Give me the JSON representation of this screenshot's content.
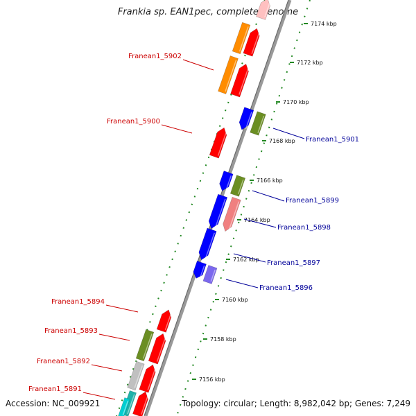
{
  "header": {
    "title": "Frankia sp. EAN1pec, complete genome"
  },
  "footer": {
    "accession": "Accession: NC_009921",
    "topology": "Topology: circular; Length: 8,982,042 bp; Genes: 7,249"
  },
  "colors": {
    "forward_label": "#cc0000",
    "reverse_label": "#000099",
    "dotted_track": "#228822",
    "backbone": "#999999",
    "gene_red": "#ff0000",
    "gene_orange": "#ff8c00",
    "gene_blue": "#0000ff",
    "gene_olive": "#6b8e23",
    "gene_pink": "#f08080",
    "gene_lightpink": "#ffc0c0",
    "gene_purple": "#7b68ee",
    "gene_gray": "#c0c0c0",
    "gene_teal": "#20b2aa",
    "gene_cyan": "#00ced1"
  },
  "ticks": [
    "7174 kbp",
    "7172 kbp",
    "7170 kbp",
    "7168 kbp",
    "7166 kbp",
    "7164 kbp",
    "7162 kbp",
    "7160 kbp",
    "7158 kbp",
    "7156 kbp"
  ],
  "gene_labels": [
    {
      "text": "Franean1_5902",
      "strand": "forward"
    },
    {
      "text": "Franean1_5900",
      "strand": "forward"
    },
    {
      "text": "Franean1_5901",
      "strand": "reverse"
    },
    {
      "text": "Franean1_5899",
      "strand": "reverse"
    },
    {
      "text": "Franean1_5898",
      "strand": "reverse"
    },
    {
      "text": "Franean1_5897",
      "strand": "reverse"
    },
    {
      "text": "Franean1_5896",
      "strand": "reverse"
    },
    {
      "text": "Franean1_5894",
      "strand": "forward"
    },
    {
      "text": "Franean1_5893",
      "strand": "forward"
    },
    {
      "text": "Franean1_5892",
      "strand": "forward"
    },
    {
      "text": "Franean1_5891",
      "strand": "forward"
    }
  ],
  "genes": [
    {
      "track": "forward",
      "color": "gene_lightpink"
    },
    {
      "track": "forward",
      "color": "gene_red"
    },
    {
      "track": "forward",
      "color": "gene_red"
    },
    {
      "track": "forward",
      "color": "gene_red"
    },
    {
      "track": "forward",
      "color": "gene_red"
    },
    {
      "track": "forward",
      "color": "gene_red"
    },
    {
      "track": "forward",
      "color": "gene_red"
    },
    {
      "track": "forward",
      "color": "gene_red"
    },
    {
      "track": "forward_inner",
      "color": "gene_orange"
    },
    {
      "track": "forward_inner",
      "color": "gene_orange"
    },
    {
      "track": "forward_inner",
      "color": "gene_olive"
    },
    {
      "track": "forward_inner",
      "color": "gene_gray"
    },
    {
      "track": "forward_inner",
      "color": "gene_teal"
    },
    {
      "track": "reverse",
      "color": "gene_blue"
    },
    {
      "track": "reverse",
      "color": "gene_blue"
    },
    {
      "track": "reverse",
      "color": "gene_blue"
    },
    {
      "track": "reverse",
      "color": "gene_blue"
    },
    {
      "track": "reverse",
      "color": "gene_blue"
    },
    {
      "track": "reverse",
      "color": "gene_blue"
    },
    {
      "track": "reverse_outer",
      "color": "gene_olive"
    },
    {
      "track": "reverse_outer",
      "color": "gene_olive"
    },
    {
      "track": "reverse_outer",
      "color": "gene_pink"
    },
    {
      "track": "reverse_outer",
      "color": "gene_purple"
    },
    {
      "track": "forward_inner",
      "color": "gene_cyan"
    }
  ]
}
